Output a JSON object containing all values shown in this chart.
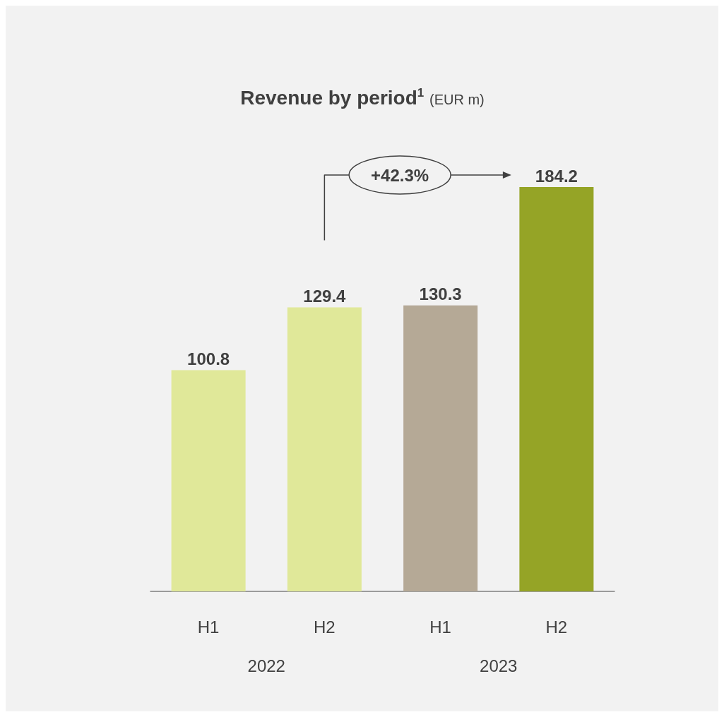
{
  "chart_data": {
    "type": "bar",
    "title": "Revenue by period$^{1}$",
    "subtitle": "(EUR m)",
    "categories": [
      "H1",
      "H2",
      "H1",
      "H2"
    ],
    "values": [
      100.8,
      129.4,
      130.3,
      184.2
    ],
    "colors": [
      "#e0e899",
      "#e0e899",
      "#b5a996",
      "#95a426"
    ],
    "data_labels": true,
    "grid": false,
    "annotations": [
      "2022",
      "2023",
      "+42.3%"
    ]
  }
}
